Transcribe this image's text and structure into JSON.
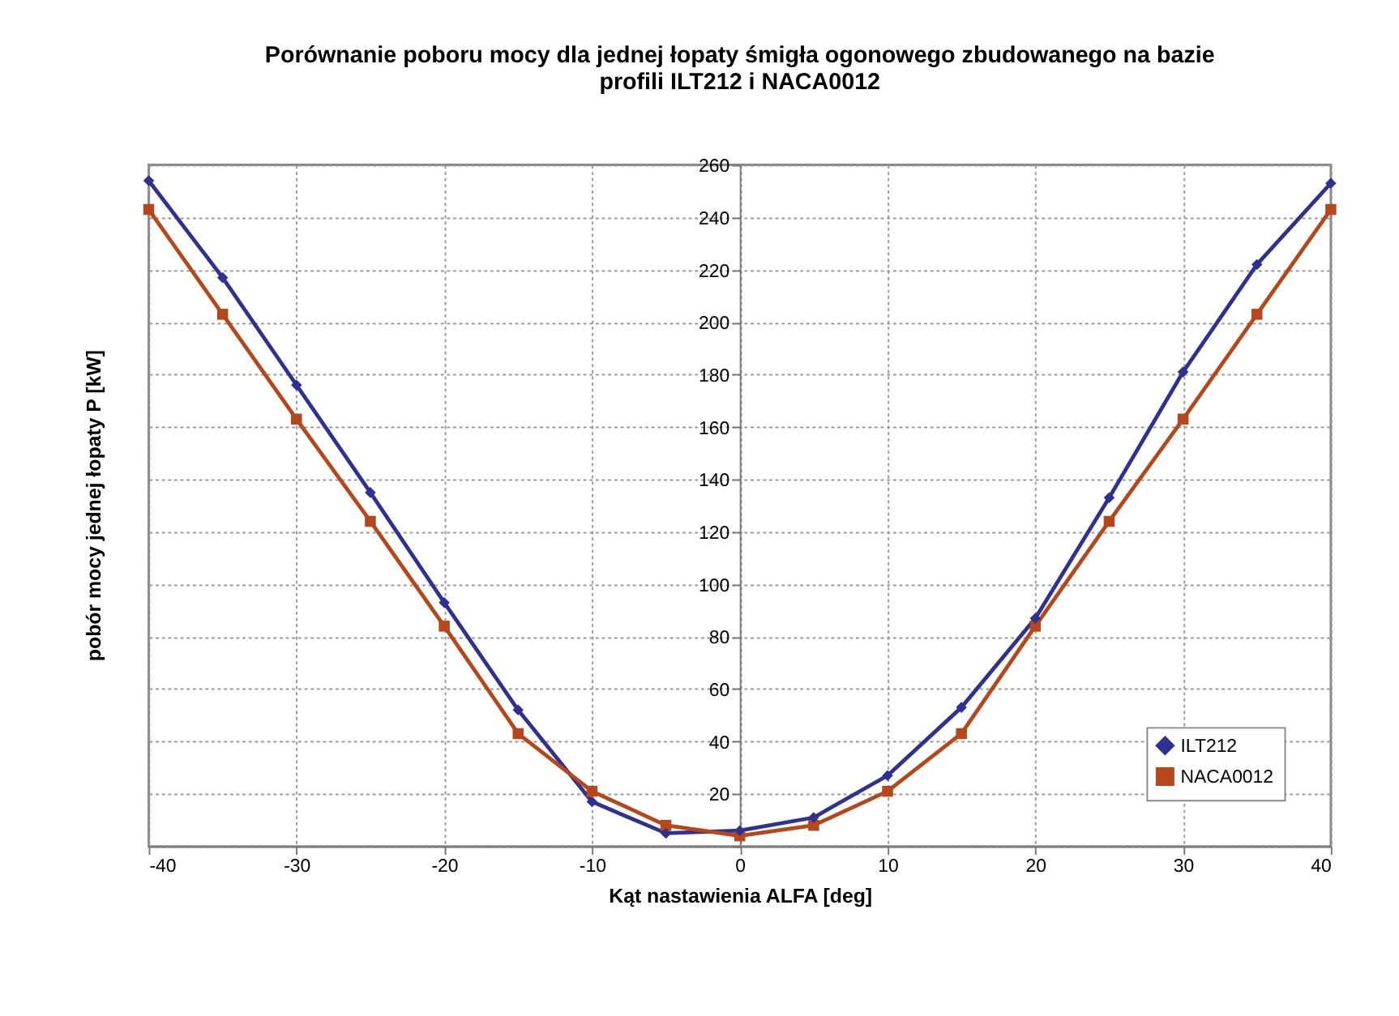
{
  "chart_data": {
    "type": "line",
    "title": [
      "Porównanie poboru mocy dla jednej łopaty śmigła ogonowego zbudowanego na bazie",
      "profili ILT212 i NACA0012"
    ],
    "xlabel": "Kąt nastawienia ALFA [deg]",
    "ylabel": "pobór mocy jednej łopaty P [kW]",
    "x": [
      -40,
      -35,
      -30,
      -25,
      -20,
      -15,
      -10,
      -5,
      0,
      5,
      10,
      15,
      20,
      25,
      30,
      35,
      40
    ],
    "series": [
      {
        "name": "ILT212",
        "color": "#2e3192",
        "marker": "diamond",
        "values": [
          254,
          217,
          176,
          135,
          93,
          52,
          17,
          5,
          6,
          11,
          27,
          53,
          87,
          133,
          181,
          222,
          253
        ]
      },
      {
        "name": "NACA0012",
        "color": "#b5471a",
        "marker": "square",
        "values": [
          243,
          203,
          163,
          124,
          84,
          43,
          21,
          8,
          4,
          8,
          21,
          43,
          84,
          124,
          163,
          203,
          243
        ]
      }
    ],
    "xlim": [
      -40,
      40
    ],
    "xticks": [
      -40,
      -30,
      -20,
      -10,
      0,
      10,
      20,
      30,
      40
    ],
    "ylim": [
      0,
      260
    ],
    "yticks": [
      {
        "value": 0,
        "label": null
      },
      20,
      40,
      60,
      80,
      100,
      120,
      140,
      160,
      180,
      200,
      220,
      240,
      260
    ],
    "grid": true,
    "legend": "bottom right",
    "line_style": "solid"
  }
}
